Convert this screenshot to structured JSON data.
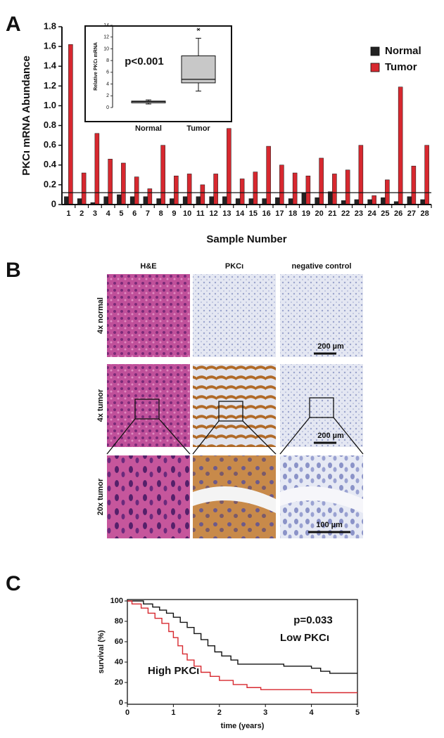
{
  "panel_labels": [
    "A",
    "B",
    "C"
  ],
  "chart_data": [
    {
      "type": "bar",
      "ylabel": "PKCι mRNA Abundance",
      "xlabel": "Sample Number",
      "categories": [
        "1",
        "2",
        "3",
        "4",
        "5",
        "6",
        "7",
        "8",
        "9",
        "10",
        "11",
        "12",
        "13",
        "14",
        "15",
        "16",
        "17",
        "18",
        "19",
        "20",
        "21",
        "22",
        "23",
        "24",
        "25",
        "26",
        "27",
        "28"
      ],
      "series": [
        {
          "name": "Normal",
          "color": "#222222",
          "values": [
            0.08,
            0.06,
            0.02,
            0.08,
            0.1,
            0.08,
            0.08,
            0.06,
            0.06,
            0.08,
            0.08,
            0.08,
            0.08,
            0.06,
            0.06,
            0.06,
            0.07,
            0.06,
            0.12,
            0.07,
            0.13,
            0.04,
            0.05,
            0.05,
            0.07,
            0.03,
            0.08,
            0.05
          ]
        },
        {
          "name": "Tumor",
          "color": "#d7282f",
          "values": [
            1.62,
            0.32,
            0.72,
            0.46,
            0.42,
            0.28,
            0.16,
            0.6,
            0.29,
            0.31,
            0.2,
            0.31,
            0.77,
            0.26,
            0.33,
            0.59,
            0.4,
            0.32,
            0.29,
            0.47,
            0.31,
            0.35,
            0.6,
            0.09,
            0.25,
            1.19,
            0.39,
            0.6
          ]
        }
      ],
      "reference_line": 0.12,
      "ylim": [
        0,
        1.8
      ],
      "yticks": [
        0,
        0.2,
        0.4,
        0.6,
        0.8,
        {
          "value": 1,
          "label": "1.0"
        },
        1.2,
        1.4,
        1.6,
        1.8
      ],
      "legend": "top-right"
    },
    {
      "type": "box",
      "ylabel": "Relative PKCι mRNA",
      "annotation": "p<0.001",
      "categories": [
        "Normal",
        "Tumor"
      ],
      "color": "#c8c8c8",
      "boxes": [
        {
          "min": 0.6,
          "q1": 0.8,
          "median": 1.0,
          "q3": 1.1,
          "max": 1.3,
          "outliers": []
        },
        {
          "min": 2.8,
          "q1": 4.2,
          "median": 4.8,
          "q3": 8.8,
          "max": 11.8,
          "outliers": [
            13.3
          ]
        }
      ],
      "ylim": [
        0,
        14
      ],
      "yticks": [
        0,
        2,
        4,
        6,
        8,
        10,
        12,
        14
      ]
    },
    {
      "type": "line",
      "xlabel": "time (years)",
      "ylabel": "survival (%)",
      "annotation": "p=0.033",
      "series": [
        {
          "name": "Low PKCι",
          "color": "#111111",
          "x": [
            0,
            0.35,
            0.35,
            0.55,
            0.55,
            0.7,
            0.7,
            0.85,
            0.85,
            1.0,
            1.0,
            1.15,
            1.15,
            1.3,
            1.3,
            1.45,
            1.45,
            1.6,
            1.6,
            1.75,
            1.75,
            1.9,
            1.9,
            2.05,
            2.05,
            2.25,
            2.25,
            2.4,
            2.4,
            3.4,
            3.4,
            4.0,
            4.0,
            4.2,
            4.2,
            4.4,
            4.4,
            5.0
          ],
          "values": [
            100,
            100,
            97,
            97,
            94,
            94,
            91,
            91,
            88,
            88,
            84,
            84,
            79,
            79,
            74,
            74,
            68,
            68,
            62,
            62,
            56,
            56,
            50,
            50,
            46,
            46,
            42,
            42,
            38,
            38,
            36,
            36,
            34,
            34,
            31,
            31,
            29,
            29
          ]
        },
        {
          "name": "High PKCι",
          "color": "#d7282f",
          "x": [
            0,
            0.1,
            0.1,
            0.3,
            0.3,
            0.45,
            0.45,
            0.6,
            0.6,
            0.75,
            0.75,
            0.9,
            0.9,
            1.0,
            1.0,
            1.1,
            1.1,
            1.2,
            1.2,
            1.3,
            1.3,
            1.45,
            1.45,
            1.6,
            1.6,
            1.8,
            1.8,
            2.0,
            2.0,
            2.3,
            2.3,
            2.6,
            2.6,
            2.9,
            2.9,
            4.0,
            4.0,
            5.0
          ],
          "values": [
            100,
            100,
            97,
            97,
            93,
            93,
            88,
            88,
            83,
            83,
            78,
            78,
            70,
            70,
            64,
            64,
            56,
            56,
            48,
            48,
            42,
            42,
            36,
            36,
            30,
            30,
            26,
            26,
            22,
            22,
            18,
            18,
            15,
            15,
            13,
            13,
            10,
            10
          ]
        }
      ],
      "xlim": [
        0,
        5
      ],
      "xticks": [
        0,
        1,
        2,
        3,
        4,
        5
      ],
      "ylim": [
        0,
        100
      ],
      "yticks": [
        0,
        20,
        40,
        60,
        80,
        100
      ]
    }
  ],
  "panel_b": {
    "columns": [
      "H&E",
      "PKCι",
      "negative control"
    ],
    "rows": [
      "4x normal",
      "4x tumor",
      "20x tumor"
    ],
    "scale_bars": [
      "200 µm",
      "200 µm",
      "100 µm"
    ]
  }
}
